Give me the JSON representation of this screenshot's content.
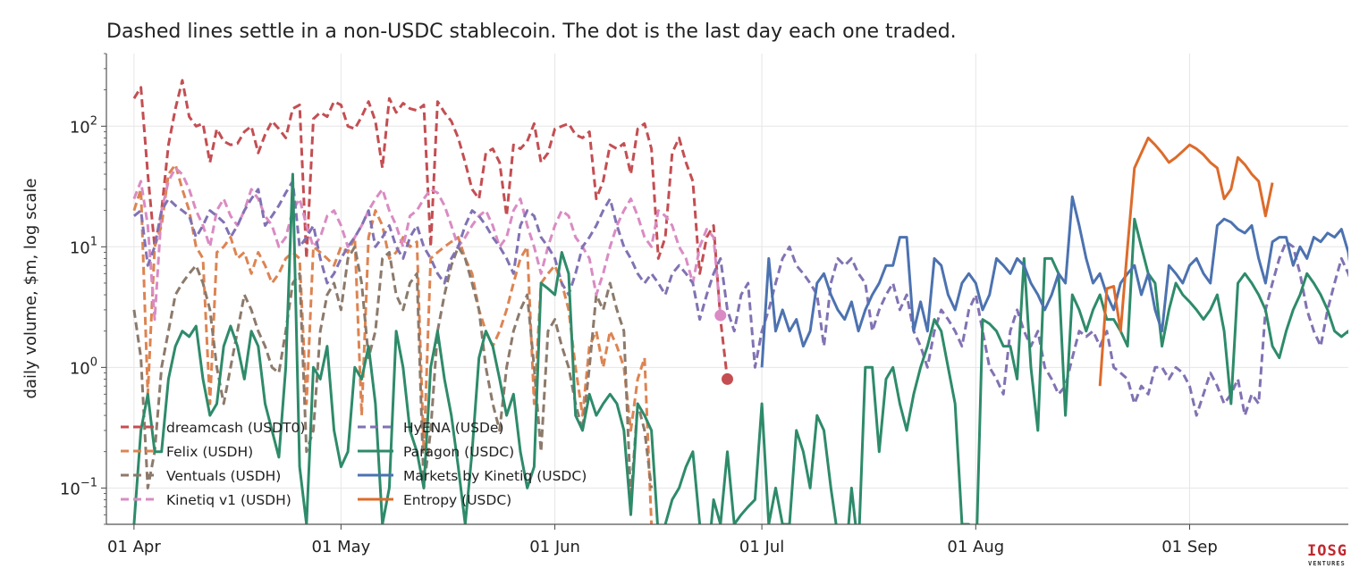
{
  "chart_data": {
    "type": "line",
    "title": "Dashed lines settle in a non-USDC stablecoin. The dot is the last day each one traded.",
    "xlabel": "",
    "ylabel": "daily volume, $m, log scale",
    "yscale": "log",
    "xlim": [
      "2025-03-28",
      "2025-09-24"
    ],
    "ylim": [
      0.05,
      400
    ],
    "grid": true,
    "legend_position": "lower-left",
    "x_ticks": [
      {
        "date": "2025-04-01",
        "label": "01 Apr"
      },
      {
        "date": "2025-05-01",
        "label": "01 May"
      },
      {
        "date": "2025-06-01",
        "label": "01 Jun"
      },
      {
        "date": "2025-07-01",
        "label": "01 Jul"
      },
      {
        "date": "2025-08-01",
        "label": "01 Aug"
      },
      {
        "date": "2025-09-01",
        "label": "01 Sep"
      }
    ],
    "y_ticks": [
      {
        "value": 0.1,
        "base": "10",
        "exp": "−1"
      },
      {
        "value": 1,
        "base": "10",
        "exp": "0"
      },
      {
        "value": 10,
        "base": "10",
        "exp": "1"
      },
      {
        "value": 100,
        "base": "10",
        "exp": "2"
      }
    ],
    "series": [
      {
        "name": "dreamcash (USDT0)",
        "color": "#c44e52",
        "dashed": true,
        "end_dot": true,
        "start": "2025-04-01",
        "values": [
          170,
          210,
          40,
          10,
          20,
          70,
          140,
          240,
          120,
          100,
          105,
          50,
          95,
          75,
          70,
          72,
          90,
          100,
          60,
          85,
          110,
          95,
          80,
          140,
          150,
          8,
          115,
          130,
          120,
          160,
          150,
          100,
          95,
          120,
          160,
          110,
          45,
          170,
          130,
          155,
          140,
          135,
          150,
          10,
          160,
          130,
          110,
          80,
          50,
          30,
          25,
          60,
          65,
          50,
          18,
          70,
          65,
          75,
          105,
          50,
          60,
          95,
          100,
          105,
          85,
          80,
          90,
          25,
          35,
          70,
          65,
          72,
          40,
          95,
          105,
          65,
          8,
          12,
          60,
          80,
          50,
          35,
          6,
          12,
          15,
          2.5,
          0.8
        ]
      },
      {
        "name": "Felix (USDH)",
        "color": "#dd8452",
        "dashed": true,
        "start": "2025-04-01",
        "values": [
          20,
          30,
          0.6,
          10,
          15,
          40,
          48,
          30,
          20,
          10,
          8,
          0.5,
          9,
          10,
          12,
          8,
          9,
          6,
          9,
          7,
          5,
          6,
          8,
          9,
          8,
          0.5,
          10,
          9,
          8,
          7,
          10,
          9,
          12,
          0.4,
          12,
          20,
          15,
          8,
          9,
          12,
          10,
          11,
          0.2,
          8,
          9,
          10,
          11,
          12,
          8,
          6,
          3,
          2,
          1.5,
          2,
          3,
          5,
          8,
          10,
          0.5,
          5,
          6,
          7,
          5,
          3,
          1,
          0.4,
          1.5,
          2,
          1,
          2,
          1.5,
          1,
          0.3,
          0.8,
          1.2,
          0.05,
          0.02
        ]
      },
      {
        "name": "Ventuals (USDH)",
        "color": "#8c7a6b",
        "dashed": true,
        "start": "2025-04-01",
        "values": [
          3,
          1.2,
          0.1,
          0.2,
          1,
          2,
          4,
          5,
          6,
          7,
          5,
          3,
          1,
          0.5,
          1,
          2,
          4,
          3,
          2,
          1.5,
          1,
          0.9,
          2,
          5,
          6,
          0.2,
          0.3,
          2,
          4,
          5,
          3,
          8,
          10,
          5,
          1.2,
          2,
          8,
          9,
          4,
          3,
          5,
          6,
          0.1,
          0.3,
          2,
          4,
          7,
          10,
          8,
          5,
          3,
          1,
          0.5,
          0.3,
          1,
          2,
          3,
          4,
          1,
          0.2,
          2,
          2.5,
          1.5,
          1,
          0.5,
          0.3,
          1,
          4,
          3,
          5,
          3,
          2,
          0.08,
          0.5,
          0.3,
          0.1
        ]
      },
      {
        "name": "Kinetiq v1 (USDH)",
        "color": "#da8bc3",
        "dashed": true,
        "end_dot": true,
        "start": "2025-04-01",
        "values": [
          25,
          35,
          15,
          2.5,
          20,
          35,
          45,
          40,
          30,
          20,
          15,
          10,
          20,
          25,
          18,
          15,
          20,
          30,
          25,
          18,
          15,
          10,
          12,
          20,
          25,
          15,
          10,
          12,
          18,
          20,
          15,
          10,
          12,
          15,
          20,
          25,
          30,
          20,
          15,
          10,
          18,
          20,
          25,
          30,
          28,
          22,
          15,
          10,
          12,
          15,
          18,
          20,
          15,
          10,
          12,
          20,
          25,
          15,
          10,
          6,
          10,
          15,
          20,
          18,
          12,
          10,
          8,
          4,
          6,
          10,
          15,
          20,
          25,
          18,
          12,
          10,
          20,
          18,
          15,
          10,
          8,
          5,
          10,
          14,
          12,
          2.7
        ]
      },
      {
        "name": "HyENA (USDe)",
        "color": "#8172b3",
        "dashed": true,
        "end_dot": true,
        "start": "2025-04-01",
        "values": [
          18,
          20,
          7,
          10,
          20,
          25,
          22,
          20,
          18,
          12,
          15,
          20,
          18,
          16,
          12,
          15,
          20,
          25,
          30,
          15,
          18,
          22,
          28,
          35,
          10,
          12,
          15,
          8,
          5,
          6,
          8,
          10,
          12,
          15,
          20,
          10,
          12,
          15,
          10,
          8,
          12,
          15,
          10,
          8,
          6,
          5,
          8,
          10,
          15,
          20,
          18,
          15,
          12,
          10,
          8,
          6,
          15,
          20,
          18,
          12,
          10,
          8,
          5,
          4,
          6,
          10,
          12,
          15,
          20,
          25,
          15,
          10,
          8,
          6,
          5,
          6,
          5,
          4,
          6,
          7,
          6,
          5,
          2.5,
          4,
          6,
          8,
          3,
          2,
          4,
          5,
          1,
          2,
          3,
          5,
          8,
          10,
          7,
          6,
          5,
          4,
          1.5,
          5,
          8,
          7,
          8,
          6,
          5,
          2,
          3,
          4,
          5,
          3,
          4,
          2,
          1.5,
          1,
          2,
          3,
          2.5,
          2,
          1.5,
          3,
          4,
          2,
          1,
          0.8,
          0.6,
          2,
          3,
          2,
          1.5,
          2,
          1,
          0.8,
          0.6,
          0.7,
          1.2,
          2,
          1.8,
          2,
          1.5,
          2,
          1,
          0.9,
          0.8,
          0.5,
          0.7,
          0.6,
          1,
          1,
          0.8,
          1,
          0.9,
          0.7,
          0.4,
          0.6,
          0.9,
          0.7,
          0.5,
          0.6,
          0.8,
          0.4,
          0.6,
          0.5,
          3,
          5,
          8,
          11,
          10,
          6,
          3,
          2,
          1.5,
          3,
          5,
          8,
          6,
          4,
          2,
          3,
          2.5,
          2,
          1.5,
          1.2,
          1,
          0.8
        ]
      },
      {
        "name": "Paragon (USDC)",
        "color": "#2e8b6a",
        "dashed": false,
        "start": "2025-04-01",
        "values": [
          0.05,
          0.3,
          0.6,
          0.2,
          0.2,
          0.8,
          1.5,
          2,
          1.8,
          2.2,
          0.8,
          0.4,
          0.5,
          1.5,
          2.2,
          1.5,
          0.8,
          2,
          1.5,
          0.5,
          0.3,
          0.18,
          1,
          40,
          0.15,
          0.05,
          1,
          0.8,
          1.5,
          0.3,
          0.15,
          0.2,
          1,
          0.8,
          1.5,
          0.5,
          0.05,
          0.1,
          2,
          1,
          0.3,
          0.2,
          0.1,
          1,
          2,
          0.8,
          0.4,
          0.15,
          0.05,
          0.2,
          1.2,
          2,
          1.5,
          0.8,
          0.4,
          0.6,
          0.2,
          0.1,
          0.15,
          5,
          4.5,
          4,
          9,
          6,
          0.4,
          0.3,
          0.6,
          0.4,
          0.5,
          0.6,
          0.5,
          0.3,
          0.06,
          0.5,
          0.4,
          0.3,
          0.04,
          0.05,
          0.08,
          0.1,
          0.15,
          0.2,
          0.05,
          0.02,
          0.08,
          0.05,
          0.2,
          0.05,
          0.06,
          0.07,
          0.08,
          0.5,
          0.05,
          0.1,
          0.05,
          0.05,
          0.3,
          0.2,
          0.1,
          0.4,
          0.3,
          0.1,
          0.04,
          0.02,
          0.1,
          0.03,
          1,
          1,
          0.2,
          0.8,
          1,
          0.5,
          0.3,
          0.6,
          1,
          1.5,
          2.5,
          2,
          1,
          0.5,
          0.05,
          0.05,
          0.02,
          2.5,
          2.3,
          2,
          1.5,
          1.5,
          0.8,
          8,
          1,
          0.3,
          8,
          8,
          6,
          0.4,
          4,
          3,
          2,
          3,
          4,
          2.5,
          2.5,
          2,
          1.5,
          17,
          10,
          6,
          5,
          1.5,
          3,
          5,
          4,
          3.5,
          3,
          2.5,
          3,
          4,
          2,
          0.5,
          5,
          6,
          5,
          4,
          3,
          1.5,
          1.2,
          2,
          3,
          4,
          6,
          5,
          4,
          3,
          2,
          1.8,
          2,
          1.5,
          3,
          4,
          5,
          4.5,
          3.5,
          2,
          1.5,
          1.2,
          3.5
        ]
      },
      {
        "name": "Markets by Kinetiq (USDC)",
        "color": "#4c72b0",
        "dashed": false,
        "start": "2025-07-01",
        "values": [
          1,
          8,
          2,
          3,
          2,
          2.5,
          1.5,
          2,
          5,
          6,
          4,
          3,
          2.5,
          3.5,
          2,
          3,
          4,
          5,
          7,
          7,
          12,
          12,
          2,
          3.5,
          2,
          8,
          7,
          4,
          3,
          5,
          6,
          5,
          3,
          4,
          8,
          7,
          6,
          8,
          7,
          5,
          4,
          3,
          4,
          6,
          5,
          26,
          15,
          8,
          5,
          6,
          4,
          3,
          5,
          6,
          7,
          4,
          6,
          3,
          2,
          7,
          6,
          5,
          7,
          8,
          6,
          5,
          15,
          17,
          16,
          14,
          13,
          15,
          8,
          5,
          11,
          12,
          12,
          7,
          10,
          8,
          12,
          11,
          13,
          12,
          14,
          9,
          3.5,
          10,
          15,
          12,
          4,
          4,
          5,
          6,
          7,
          12,
          10,
          11,
          8,
          5,
          13,
          12,
          2,
          4.7
        ]
      },
      {
        "name": "Entropy (USDC)",
        "color": "#dd6b2b",
        "dashed": false,
        "start": "2025-08-19",
        "values": [
          0.7,
          4.5,
          4.7,
          2,
          10,
          45,
          60,
          80,
          70,
          60,
          50,
          55,
          62,
          70,
          65,
          58,
          50,
          45,
          25,
          30,
          55,
          48,
          40,
          35,
          18,
          34
        ]
      }
    ]
  },
  "watermark": {
    "logo": "IOSG",
    "sub": "VENTURES"
  }
}
